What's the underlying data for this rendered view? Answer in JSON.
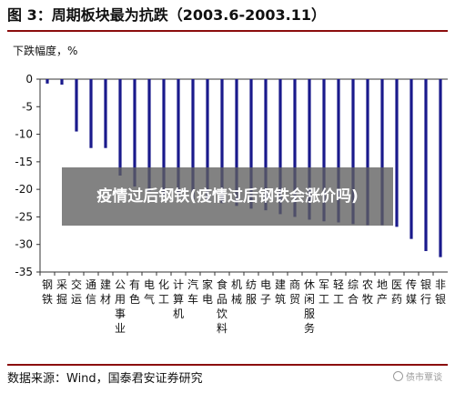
{
  "figure": {
    "title": "图 3：周期板块最为抗跌（2003.6-2003.11）",
    "source": "数据来源：Wind，国泰君安证券研究",
    "watermark": "债市覃谈"
  },
  "overlay": {
    "headline": "疫情过后钢铁(疫情过后钢铁会涨价吗)"
  },
  "colors": {
    "bar": "#1a1a8c",
    "rule": "#8b0d0d",
    "axis": "#333333"
  },
  "chart_data": {
    "type": "bar",
    "ylabel": "下跌幅度，%",
    "ylim": [
      -35,
      0
    ],
    "yticks": [
      0,
      -5,
      -10,
      -15,
      -20,
      -25,
      -30,
      -35
    ],
    "grid": false,
    "categories": [
      "钢铁",
      "采掘",
      "交运",
      "通信",
      "建材",
      "公用事业",
      "有色",
      "电气",
      "化工",
      "计算机",
      "汽车",
      "家电",
      "食品饮料",
      "机械",
      "纺服",
      "电子",
      "建筑",
      "商贸",
      "休闲服务",
      "军工",
      "轻工",
      "综合",
      "农牧",
      "地产",
      "医药",
      "传媒",
      "银行",
      "非银"
    ],
    "category_lines": [
      [
        "钢",
        "铁"
      ],
      [
        "采",
        "掘"
      ],
      [
        "交",
        "运"
      ],
      [
        "通",
        "信"
      ],
      [
        "建",
        "材"
      ],
      [
        "公",
        "用",
        "事",
        "业"
      ],
      [
        "有",
        "色"
      ],
      [
        "电",
        "气"
      ],
      [
        "化",
        "工"
      ],
      [
        "计",
        "算",
        "机"
      ],
      [
        "汽",
        "车"
      ],
      [
        "家",
        "电"
      ],
      [
        "食",
        "品",
        "饮",
        "料"
      ],
      [
        "机",
        "械"
      ],
      [
        "纺",
        "服"
      ],
      [
        "电",
        "子"
      ],
      [
        "建",
        "筑"
      ],
      [
        "商",
        "贸"
      ],
      [
        "休",
        "闲",
        "服",
        "务"
      ],
      [
        "军",
        "工"
      ],
      [
        "轻",
        "工"
      ],
      [
        "综",
        "合"
      ],
      [
        "农",
        "牧"
      ],
      [
        "地",
        "产"
      ],
      [
        "医",
        "药"
      ],
      [
        "传",
        "媒"
      ],
      [
        "银",
        "行"
      ],
      [
        "非",
        "银"
      ]
    ],
    "values": [
      -0.8,
      -1.0,
      -9.5,
      -12.5,
      -12.5,
      -17.5,
      -19.5,
      -20.3,
      -21.0,
      -21.5,
      -21.8,
      -22.0,
      -22.5,
      -23.0,
      -23.5,
      -23.8,
      -24.5,
      -25.0,
      -25.5,
      -25.8,
      -26.0,
      -26.3,
      -26.5,
      -26.5,
      -26.8,
      -29.0,
      -31.2,
      -32.3
    ]
  }
}
